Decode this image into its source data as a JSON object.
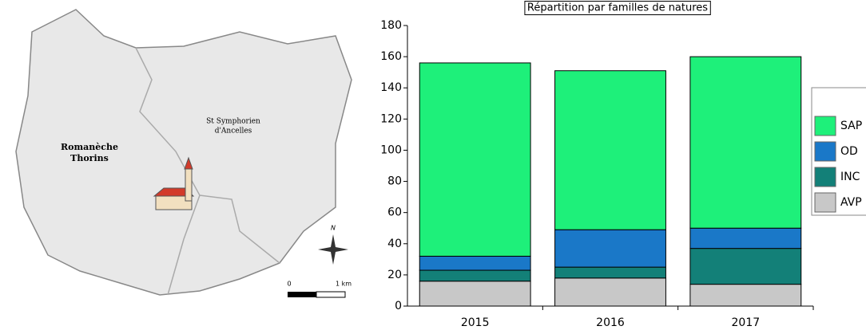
{
  "map": {
    "commune_1": [
      "Romanèche",
      "Thorins"
    ],
    "commune_2": [
      "St Symphorien",
      "d'Ancelles"
    ],
    "north": "N",
    "scale_start": "0",
    "scale_end": "1 km"
  },
  "chart_data": {
    "type": "bar",
    "stacked": true,
    "title": "Répartition par familles de natures",
    "categories": [
      "2015",
      "2016",
      "2017"
    ],
    "series": [
      {
        "name": "AVP",
        "color": "#c8c8c8",
        "values": [
          16,
          18,
          14
        ]
      },
      {
        "name": "INC",
        "color": "#138078",
        "values": [
          7,
          7,
          23
        ]
      },
      {
        "name": "OD",
        "color": "#1a78c8",
        "values": [
          9,
          24,
          13
        ]
      },
      {
        "name": "SAP",
        "color": "#1ef07a",
        "values": [
          124,
          102,
          110
        ]
      }
    ],
    "ylim": [
      0,
      180
    ],
    "yticks": [
      0,
      20,
      40,
      60,
      80,
      100,
      120,
      140,
      160,
      180
    ],
    "legend": "right"
  }
}
